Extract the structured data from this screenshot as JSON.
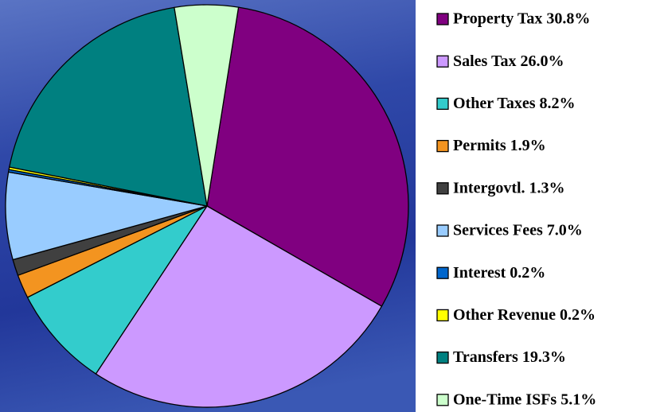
{
  "chart_data": {
    "type": "pie",
    "categories": [
      "Property Tax  30.8%",
      "Sales Tax 26.0%",
      "Other Taxes 8.2%",
      "Permits 1.9%",
      "Intergovtl. 1.3%",
      "Services Fees 7.0%",
      "Interest 0.2%",
      "Other Revenue 0.2%",
      "Transfers 19.3%",
      "One-Time ISFs 5.1%"
    ],
    "values": [
      30.8,
      26.0,
      8.2,
      1.9,
      1.3,
      7.0,
      0.2,
      0.2,
      19.3,
      5.1
    ],
    "colors": [
      "#800080",
      "#cc99ff",
      "#33cccc",
      "#f39420",
      "#404040",
      "#99ccff",
      "#0066cc",
      "#ffff00",
      "#008080",
      "#ccffcc"
    ],
    "legend": "right"
  }
}
